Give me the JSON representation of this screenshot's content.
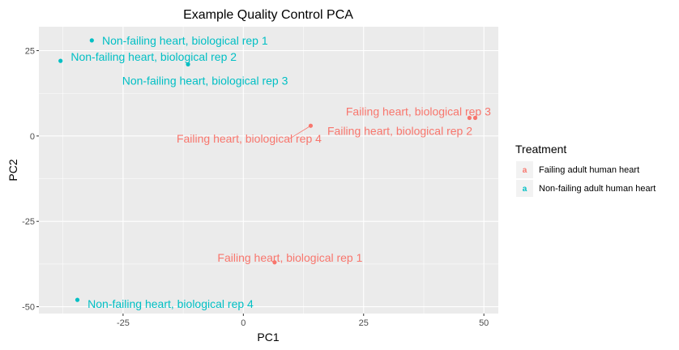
{
  "chart_data": {
    "type": "scatter",
    "title": "Example Quality Control PCA",
    "xlabel": "PC1",
    "ylabel": "PC2",
    "xlim": [
      -42.5,
      53
    ],
    "ylim": [
      -52,
      32
    ],
    "x_ticks": [
      -25,
      0,
      25,
      50
    ],
    "x_tick_labels": [
      "-25",
      "0",
      "25",
      "50"
    ],
    "y_ticks": [
      -50,
      -25,
      0,
      25
    ],
    "y_tick_labels": [
      "-50",
      "-25",
      "0",
      "25"
    ],
    "grid": true,
    "legend": {
      "title": "Treatment",
      "position": "right",
      "entries": [
        "Failing adult human heart",
        "Non-failing adult human heart"
      ],
      "key_glyph": "a"
    },
    "colors": {
      "Failing adult human heart": "#F8766D",
      "Non-failing adult human heart": "#00BFC4",
      "panel_background": "#EBEBEB",
      "grid_line": "#FFFFFF"
    },
    "series": [
      {
        "name": "Failing adult human heart",
        "points": [
          {
            "x": 14,
            "y": 3,
            "label": "Failing heart, biological rep 4"
          },
          {
            "x": 47,
            "y": 5.3,
            "label": "Failing heart, biological rep 3"
          },
          {
            "x": 48.2,
            "y": 5.3,
            "label": "Failing heart, biological rep 2"
          },
          {
            "x": 6.5,
            "y": -37,
            "label": "Failing heart, biological rep 1"
          }
        ]
      },
      {
        "name": "Non-failing adult human heart",
        "points": [
          {
            "x": -31.5,
            "y": 28,
            "label": "Non-failing heart, biological rep 1"
          },
          {
            "x": -38,
            "y": 22,
            "label": "Non-failing heart, biological rep 2"
          },
          {
            "x": -11.5,
            "y": 21,
            "label": "Non-failing heart, biological rep 3"
          },
          {
            "x": -34.5,
            "y": -48,
            "label": "Non-failing heart, biological rep 4"
          }
        ]
      }
    ]
  }
}
